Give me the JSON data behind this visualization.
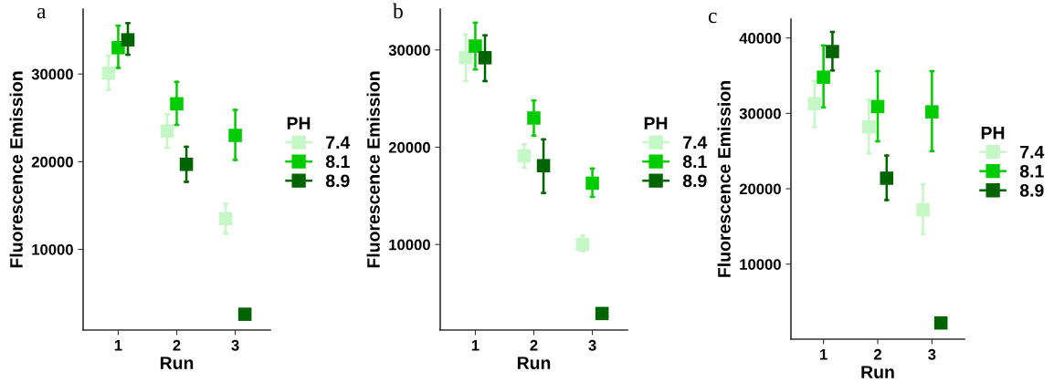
{
  "chart_data": [
    {
      "type": "scatter",
      "title": "a",
      "xlabel": "Run",
      "ylabel": "Fluorescence Emission",
      "legend_title": "PH",
      "legend": "right",
      "marker": "square",
      "grid": false,
      "categories": [
        "1",
        "2",
        "3"
      ],
      "ylim": [
        800,
        37400
      ],
      "yticks": [
        10000,
        20000,
        30000
      ],
      "series": [
        {
          "name": "7.4",
          "color": "#c6f7c6",
          "values": [
            30100,
            23500,
            13500
          ],
          "errors": [
            [
              28200,
              32100
            ],
            [
              21600,
              25400
            ],
            [
              11800,
              15200
            ]
          ]
        },
        {
          "name": "8.1",
          "color": "#00cc00",
          "values": [
            33000,
            26600,
            23000
          ],
          "errors": [
            [
              30700,
              35500
            ],
            [
              24200,
              29100
            ],
            [
              20200,
              25900
            ]
          ]
        },
        {
          "name": "8.9",
          "color": "#006400",
          "values": [
            33900,
            19700,
            2600
          ],
          "errors": [
            [
              32200,
              35800
            ],
            [
              17700,
              21700
            ],
            null
          ]
        }
      ]
    },
    {
      "type": "scatter",
      "title": "b",
      "xlabel": "Run",
      "ylabel": "Fluorescence Emission",
      "legend_title": "PH",
      "legend": "right",
      "marker": "square",
      "grid": false,
      "categories": [
        "1",
        "2",
        "3"
      ],
      "ylim": [
        1200,
        34200
      ],
      "yticks": [
        10000,
        20000,
        30000
      ],
      "series": [
        {
          "name": "7.4",
          "color": "#c6f7c6",
          "values": [
            29200,
            19100,
            10000
          ],
          "errors": [
            [
              26800,
              31600
            ],
            [
              17900,
              20300
            ],
            [
              9300,
              10900
            ]
          ]
        },
        {
          "name": "8.1",
          "color": "#00cc00",
          "values": [
            30400,
            23000,
            16300
          ],
          "errors": [
            [
              28000,
              32800
            ],
            [
              21200,
              24800
            ],
            [
              14900,
              17800
            ]
          ]
        },
        {
          "name": "8.9",
          "color": "#006400",
          "values": [
            29200,
            18100,
            2900
          ],
          "errors": [
            [
              26800,
              31500
            ],
            [
              15300,
              20800
            ],
            null
          ]
        }
      ]
    },
    {
      "type": "scatter",
      "title": "c",
      "xlabel": "Run",
      "ylabel": "Fluorescence Emission",
      "legend_title": "PH",
      "legend": "right",
      "marker": "square",
      "grid": false,
      "categories": [
        "1",
        "2",
        "3"
      ],
      "ylim": [
        50,
        42500
      ],
      "yticks": [
        10000,
        20000,
        30000,
        40000
      ],
      "series": [
        {
          "name": "7.4",
          "color": "#c6f7c6",
          "values": [
            31300,
            28200,
            17200
          ],
          "errors": [
            [
              28200,
              34300
            ],
            [
              24700,
              31800
            ],
            [
              14000,
              20600
            ]
          ]
        },
        {
          "name": "8.1",
          "color": "#00cc00",
          "values": [
            34800,
            30900,
            30200
          ],
          "errors": [
            [
              30800,
              39000
            ],
            [
              26300,
              35600
            ],
            [
              25000,
              35600
            ]
          ]
        },
        {
          "name": "8.9",
          "color": "#006400",
          "values": [
            38200,
            21400,
            2200
          ],
          "errors": [
            [
              35700,
              40800
            ],
            [
              18500,
              24400
            ],
            null
          ]
        }
      ]
    }
  ]
}
